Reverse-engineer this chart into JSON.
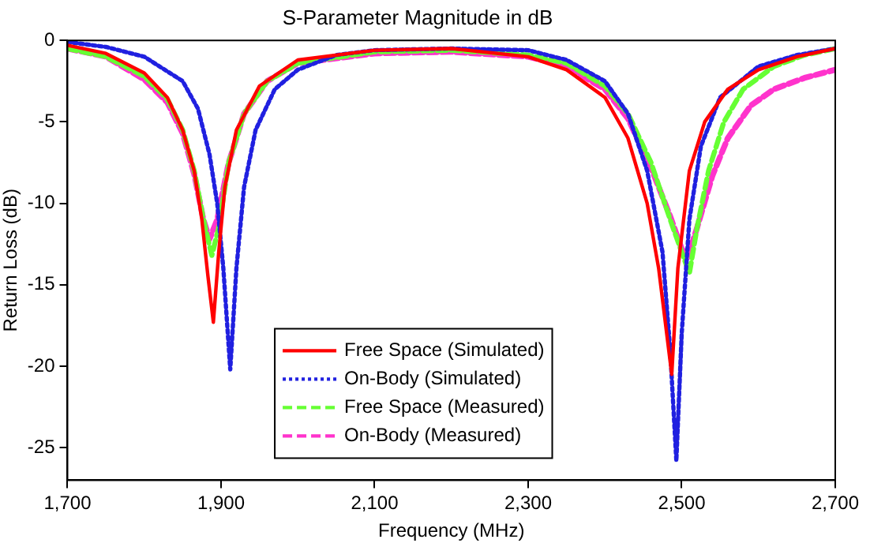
{
  "chart_data": {
    "type": "line",
    "title": "S-Parameter Magnitude in dB",
    "xlabel": "Frequency (MHz)",
    "ylabel": "Return Loss (dB)",
    "xlim": [
      1700,
      2700
    ],
    "xticks": [
      {
        "value": 1700,
        "label": "1,700"
      },
      {
        "value": 1900,
        "label": "1,900"
      },
      {
        "value": 2100,
        "label": "2,100"
      },
      {
        "value": 2300,
        "label": "2,300"
      },
      {
        "value": 2500,
        "label": "2,500"
      },
      {
        "value": 2700,
        "label": "2,700"
      }
    ],
    "ylim": [
      -27,
      0
    ],
    "yticks": [
      -25,
      -20,
      -15,
      -10,
      -5,
      0
    ],
    "grid": false,
    "legend": "bottom",
    "marker": "none",
    "series": [
      {
        "name": "Free Space (Simulated)",
        "color": "#ff0000",
        "line_style": "solid",
        "x": [
          1700,
          1750,
          1800,
          1830,
          1850,
          1865,
          1875,
          1883,
          1890,
          1897,
          1905,
          1920,
          1950,
          2000,
          2100,
          2200,
          2300,
          2350,
          2400,
          2430,
          2455,
          2470,
          2487,
          2495,
          2510,
          2530,
          2560,
          2600,
          2650,
          2700
        ],
        "values": [
          -0.3,
          -0.8,
          -2.0,
          -3.5,
          -5.5,
          -8,
          -11,
          -14.5,
          -17.3,
          -13,
          -9,
          -5.5,
          -2.8,
          -1.2,
          -0.6,
          -0.5,
          -1.0,
          -1.8,
          -3.5,
          -6,
          -10,
          -14,
          -20.5,
          -14,
          -8,
          -5,
          -3,
          -1.8,
          -1.0,
          -0.5
        ]
      },
      {
        "name": "On-Body (Simulated)",
        "color": "#2020e0",
        "line_style": "dotted",
        "x": [
          1700,
          1750,
          1800,
          1850,
          1870,
          1885,
          1895,
          1903,
          1912,
          1920,
          1930,
          1945,
          1970,
          2000,
          2050,
          2100,
          2200,
          2300,
          2350,
          2400,
          2430,
          2455,
          2475,
          2485,
          2493,
          2500,
          2510,
          2525,
          2550,
          2600,
          2650,
          2700
        ],
        "values": [
          -0.1,
          -0.4,
          -1.0,
          -2.5,
          -4.2,
          -7,
          -10,
          -14,
          -20.2,
          -14,
          -9,
          -5.5,
          -3,
          -1.8,
          -0.9,
          -0.6,
          -0.5,
          -0.6,
          -1.2,
          -2.5,
          -4.5,
          -8,
          -13,
          -19,
          -25.8,
          -18,
          -11,
          -6.5,
          -3.5,
          -1.6,
          -0.9,
          -0.5
        ]
      },
      {
        "name": "Free Space (Measured)",
        "color": "#66ff33",
        "line_style": "dashed",
        "x": [
          1700,
          1750,
          1800,
          1830,
          1850,
          1865,
          1878,
          1888,
          1897,
          1910,
          1930,
          1960,
          2000,
          2100,
          2200,
          2300,
          2350,
          2400,
          2430,
          2460,
          2485,
          2500,
          2510,
          2520,
          2535,
          2555,
          2580,
          2620,
          2660,
          2700
        ],
        "values": [
          -0.5,
          -1.0,
          -2.2,
          -3.6,
          -5.5,
          -8.0,
          -11.2,
          -13.2,
          -11.5,
          -7.5,
          -4.5,
          -2.5,
          -1.4,
          -0.7,
          -0.6,
          -0.9,
          -1.4,
          -2.8,
          -4.5,
          -7.5,
          -11,
          -13,
          -14.3,
          -11.5,
          -8,
          -5,
          -3,
          -1.6,
          -0.9,
          -0.5
        ]
      },
      {
        "name": "On-Body (Measured)",
        "color": "#ff33cc",
        "line_style": "dashed",
        "x": [
          1700,
          1750,
          1800,
          1830,
          1850,
          1865,
          1877,
          1885,
          1895,
          1910,
          1930,
          1960,
          2000,
          2100,
          2200,
          2300,
          2350,
          2400,
          2430,
          2460,
          2485,
          2500,
          2508,
          2520,
          2540,
          2560,
          2590,
          2620,
          2660,
          2700
        ],
        "values": [
          -0.5,
          -1.0,
          -2.4,
          -3.8,
          -5.7,
          -8.2,
          -11,
          -12.2,
          -11,
          -7.5,
          -4.5,
          -2.5,
          -1.4,
          -0.8,
          -0.7,
          -1.0,
          -1.6,
          -3.0,
          -4.8,
          -7.8,
          -10.8,
          -12.8,
          -13.3,
          -11.5,
          -8.3,
          -6,
          -4,
          -3,
          -2.3,
          -1.8
        ]
      }
    ]
  }
}
